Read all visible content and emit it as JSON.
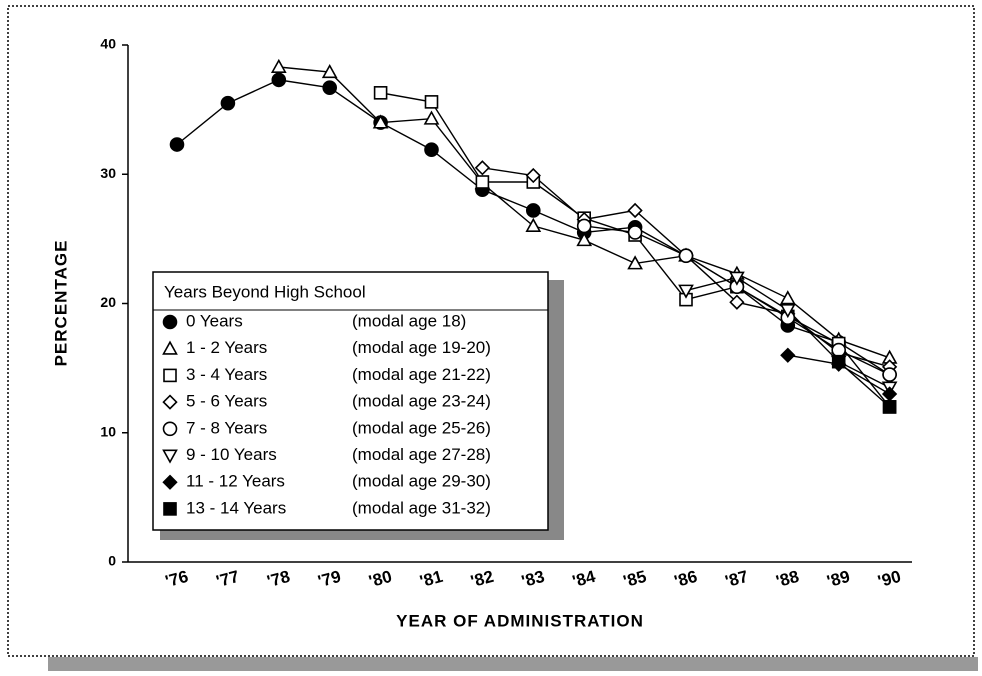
{
  "chart_data": {
    "type": "line",
    "xlabel": "YEAR OF ADMINISTRATION",
    "ylabel": "PERCENTAGE",
    "legend_title": "Years Beyond High School",
    "categories": [
      "'76",
      "'77",
      "'78",
      "'79",
      "'80",
      "'81",
      "'82",
      "'83",
      "'84",
      "'85",
      "'86",
      "'87",
      "'88",
      "'89",
      "'90"
    ],
    "ylim": [
      0,
      40
    ],
    "yticks": [
      0,
      10,
      20,
      30,
      40
    ],
    "grid": false,
    "series": [
      {
        "name": "0 Years",
        "age": "(modal age 18)",
        "marker": "filled-circle",
        "color": "#000000",
        "values": [
          32.3,
          35.5,
          37.3,
          36.7,
          34.0,
          31.9,
          28.8,
          27.2,
          25.5,
          25.9,
          23.7,
          21.3,
          18.3,
          17.0,
          14.5
        ]
      },
      {
        "name": "1 - 2 Years",
        "age": "(modal age 19-20)",
        "marker": "triangle",
        "color": "#000000",
        "values": [
          null,
          null,
          38.3,
          37.9,
          34.0,
          34.3,
          29.3,
          26.0,
          24.9,
          23.1,
          23.7,
          22.3,
          20.4,
          17.2,
          15.8
        ]
      },
      {
        "name": "3 - 4 Years",
        "age": "(modal age 21-22)",
        "marker": "square",
        "color": "#000000",
        "values": [
          null,
          null,
          null,
          null,
          36.3,
          35.6,
          29.4,
          29.4,
          26.6,
          25.3,
          20.3,
          21.3,
          19.0,
          16.9,
          12.0
        ]
      },
      {
        "name": "5 - 6 Years",
        "age": "(modal age 23-24)",
        "marker": "diamond",
        "color": "#000000",
        "values": [
          null,
          null,
          null,
          null,
          null,
          null,
          30.5,
          29.9,
          26.5,
          27.2,
          23.7,
          20.1,
          19.2,
          16.2,
          15.1
        ]
      },
      {
        "name": "7 - 8 Years",
        "age": "(modal age 25-26)",
        "marker": "circle",
        "color": "#000000",
        "values": [
          null,
          null,
          null,
          null,
          null,
          null,
          null,
          null,
          26.0,
          25.5,
          23.7,
          21.3,
          18.9,
          16.4,
          14.5
        ]
      },
      {
        "name": "9 - 10 Years",
        "age": "(modal age 27-28)",
        "marker": "down-triangle",
        "color": "#000000",
        "values": [
          null,
          null,
          null,
          null,
          null,
          null,
          null,
          null,
          null,
          null,
          21.0,
          22.0,
          19.5,
          15.5,
          13.5
        ]
      },
      {
        "name": "11 - 12 Years",
        "age": "(modal age 29-30)",
        "marker": "filled-diamond",
        "color": "#000000",
        "values": [
          null,
          null,
          null,
          null,
          null,
          null,
          null,
          null,
          null,
          null,
          null,
          null,
          16.0,
          15.3,
          13.0
        ]
      },
      {
        "name": "13 - 14 Years",
        "age": "(modal age 31-32)",
        "marker": "filled-square",
        "color": "#000000",
        "values": [
          null,
          null,
          null,
          null,
          null,
          null,
          null,
          null,
          null,
          null,
          null,
          null,
          null,
          15.5,
          12.0
        ]
      }
    ]
  }
}
